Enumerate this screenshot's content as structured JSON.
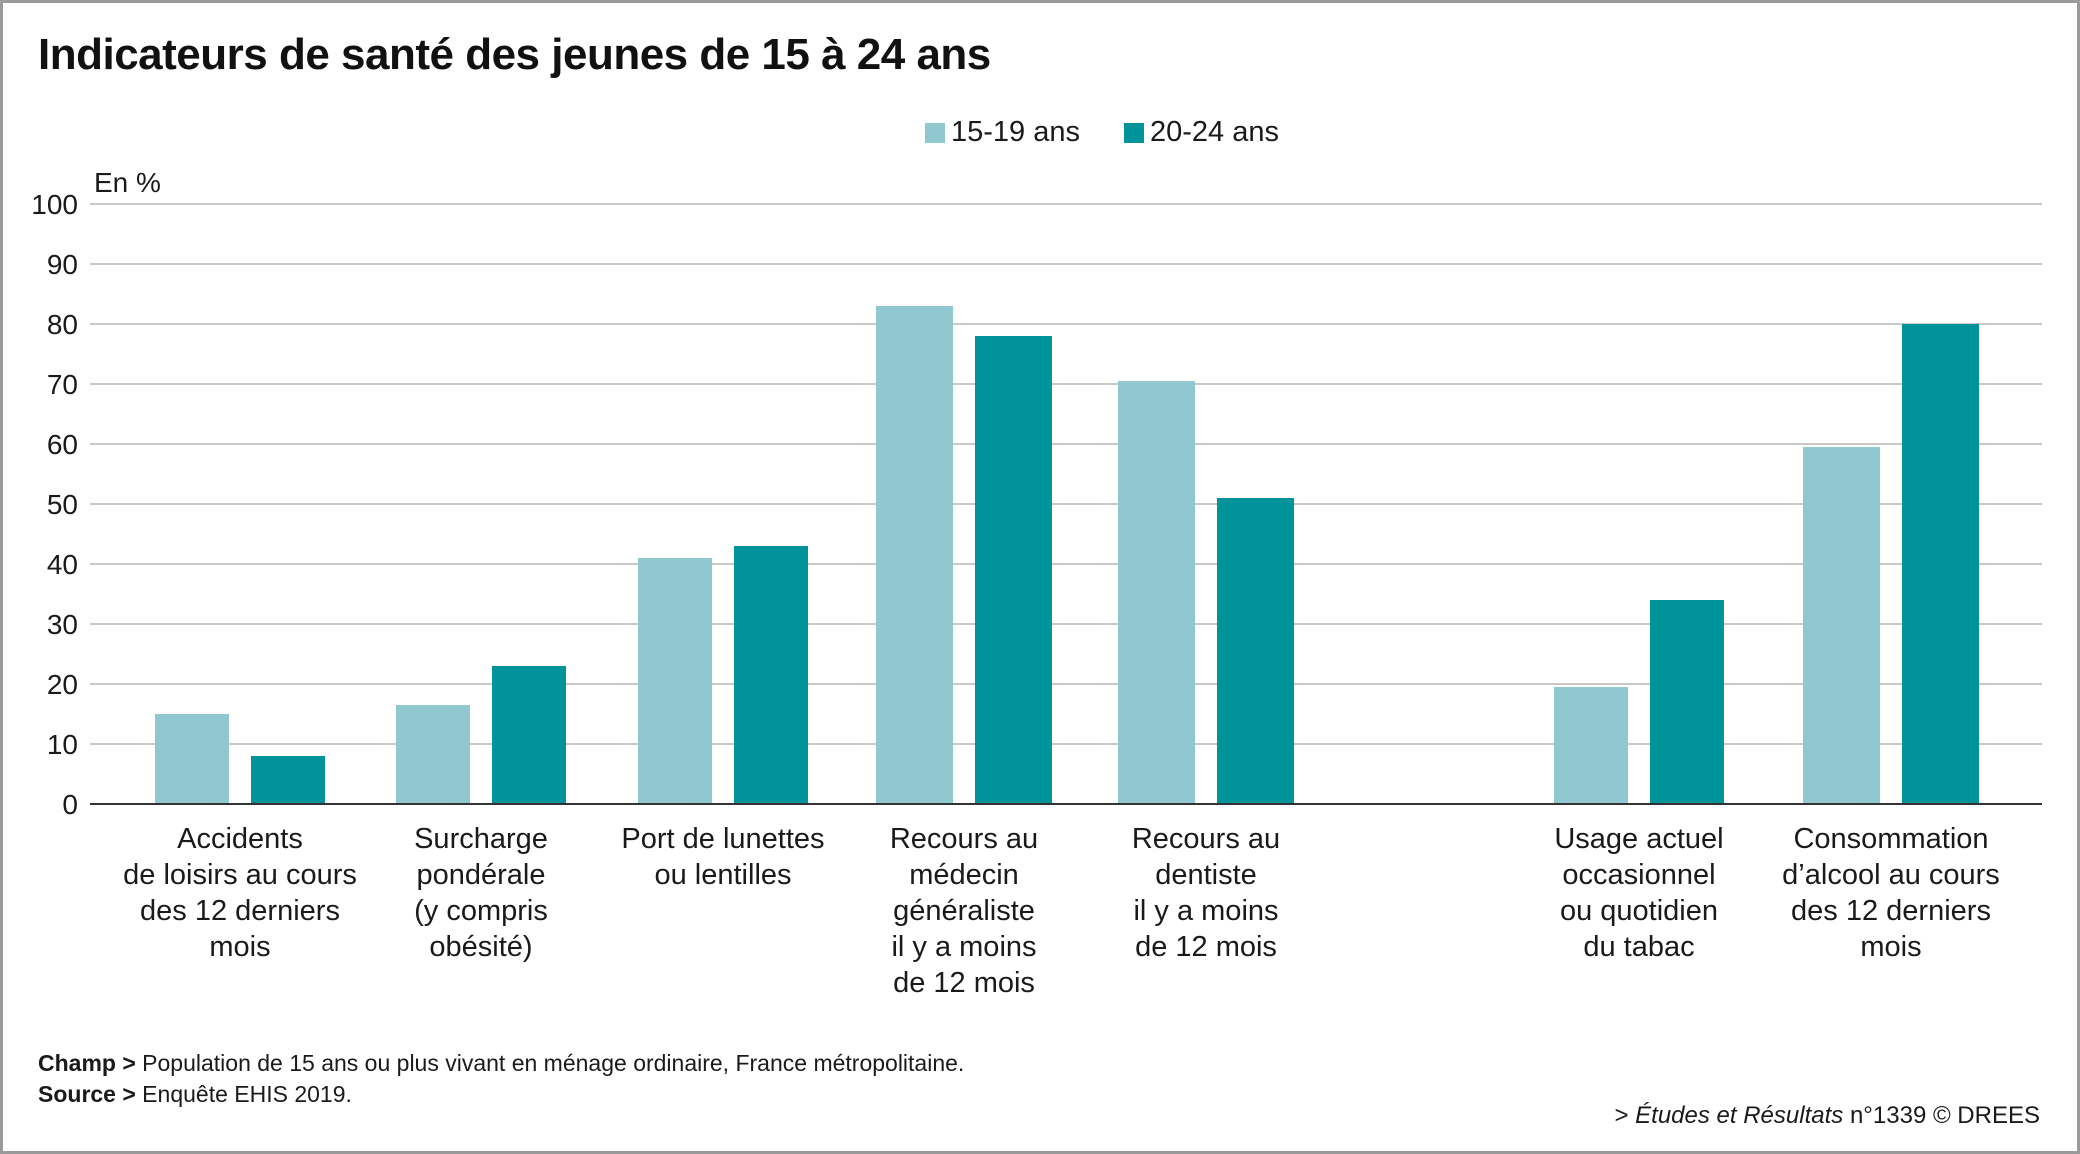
{
  "title": "Indicateurs de santé des jeunes de 15 à 24 ans",
  "colors": {
    "series1": "#8fc8ce",
    "series2": "#00939a",
    "grid": "#c8c8c8",
    "axis": "#333333"
  },
  "chart_data": {
    "type": "bar",
    "unit_label": "En %",
    "ylim": [
      0,
      100
    ],
    "yticks": [
      0,
      10,
      20,
      30,
      40,
      50,
      60,
      70,
      80,
      90,
      100
    ],
    "grid": true,
    "legend_position": "top-center",
    "categories": [
      [
        "Accidents",
        "de loisirs au cours",
        "des 12 derniers",
        "mois"
      ],
      [
        "Surcharge",
        "pondérale",
        "(y compris",
        "obésité)"
      ],
      [
        "Port de lunettes",
        "ou lentilles"
      ],
      [
        "Recours au",
        "médecin",
        "généraliste",
        "il y a moins",
        "de 12 mois"
      ],
      [
        "Recours au",
        "dentiste",
        "il y a moins",
        "de 12 mois"
      ],
      [
        "Usage actuel",
        "occasionnel",
        "ou quotidien",
        "du tabac"
      ],
      [
        "Consommation",
        "d’alcool au cours",
        "des 12 derniers",
        "mois"
      ]
    ],
    "series": [
      {
        "name": "15-19 ans",
        "values": [
          15,
          16.5,
          41,
          83,
          70.5,
          19.5,
          59.5
        ]
      },
      {
        "name": "20-24 ans",
        "values": [
          8,
          23,
          43,
          78,
          51,
          34,
          80
        ]
      }
    ]
  },
  "notes": {
    "champ_label": "Champ >",
    "champ_text": " Population de 15 ans ou plus vivant en ménage ordinaire, France métropolitaine.",
    "source_label": "Source >",
    "source_text": " Enquête EHIS 2019."
  },
  "credit": {
    "prefix": "> ",
    "publication": "Études et Résultats",
    "suffix": " n°1339 © DREES"
  }
}
